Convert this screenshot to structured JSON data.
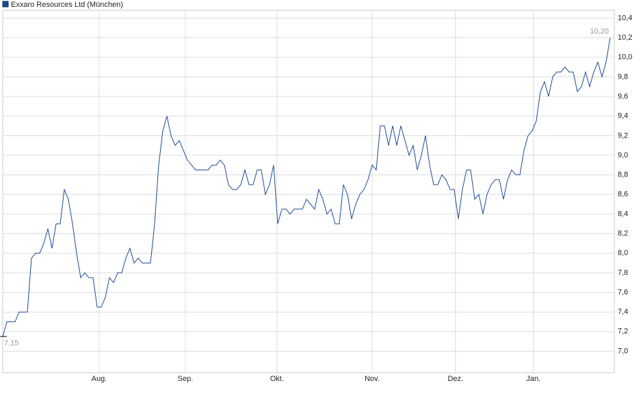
{
  "chart_data": {
    "type": "line",
    "series": [
      {
        "name": "Exxaro Resources Ltd (München)",
        "color": "#1a4a96",
        "values": [
          7.15,
          7.3,
          7.3,
          7.3,
          7.4,
          7.4,
          7.4,
          7.95,
          8.0,
          8.0,
          8.1,
          8.25,
          8.05,
          8.3,
          8.3,
          8.65,
          8.55,
          8.3,
          8.0,
          7.75,
          7.8,
          7.75,
          7.75,
          7.45,
          7.45,
          7.55,
          7.75,
          7.7,
          7.8,
          7.8,
          7.95,
          8.05,
          7.9,
          7.95,
          7.9,
          7.9,
          7.9,
          8.3,
          8.9,
          9.25,
          9.4,
          9.2,
          9.1,
          9.15,
          9.05,
          8.95,
          8.9,
          8.85,
          8.85,
          8.85,
          8.85,
          8.9,
          8.9,
          8.95,
          8.9,
          8.7,
          8.65,
          8.65,
          8.7,
          8.85,
          8.7,
          8.7,
          8.85,
          8.85,
          8.6,
          8.7,
          8.9,
          8.3,
          8.45,
          8.45,
          8.4,
          8.45,
          8.45,
          8.45,
          8.55,
          8.5,
          8.45,
          8.65,
          8.55,
          8.4,
          8.45,
          8.3,
          8.3,
          8.7,
          8.6,
          8.35,
          8.5,
          8.6,
          8.65,
          8.75,
          8.9,
          8.85,
          9.3,
          9.3,
          9.1,
          9.3,
          9.1,
          9.3,
          9.15,
          9.0,
          9.1,
          8.85,
          9.0,
          9.2,
          8.9,
          8.7,
          8.7,
          8.8,
          8.75,
          8.65,
          8.65,
          8.35,
          8.65,
          8.85,
          8.85,
          8.55,
          8.6,
          8.4,
          8.6,
          8.7,
          8.75,
          8.75,
          8.55,
          8.75,
          8.85,
          8.8,
          8.8,
          9.05,
          9.2,
          9.25,
          9.35,
          9.65,
          9.75,
          9.6,
          9.8,
          9.85,
          9.85,
          9.9,
          9.85,
          9.85,
          9.65,
          9.7,
          9.85,
          9.7,
          9.85,
          9.95,
          9.8,
          9.95,
          10.2
        ]
      }
    ],
    "annotations": [
      "7,15",
      "10,20"
    ],
    "xlim": [
      0,
      149
    ],
    "xticks": [
      {
        "value": 23.5,
        "label": "Aug."
      },
      {
        "value": 44.5,
        "label": "Sep."
      },
      {
        "value": 66.8,
        "label": "Okt."
      },
      {
        "value": 90,
        "label": "Nov."
      },
      {
        "value": 110.3,
        "label": "Dez."
      },
      {
        "value": 129.3,
        "label": "Jan."
      }
    ],
    "ylim": [
      6.78,
      10.48
    ],
    "yticks": [
      {
        "value": 7.0,
        "label": "7,0"
      },
      {
        "value": 7.2,
        "label": "7,2"
      },
      {
        "value": 7.4,
        "label": "7,4"
      },
      {
        "value": 7.6,
        "label": "7,6"
      },
      {
        "value": 7.8,
        "label": "7,8"
      },
      {
        "value": 8.0,
        "label": "8,0"
      },
      {
        "value": 8.2,
        "label": "8,2"
      },
      {
        "value": 8.4,
        "label": "8,4"
      },
      {
        "value": 8.6,
        "label": "8,6"
      },
      {
        "value": 8.8,
        "label": "8,8"
      },
      {
        "value": 9.0,
        "label": "9,0"
      },
      {
        "value": 9.2,
        "label": "9,2"
      },
      {
        "value": 9.4,
        "label": "9,4"
      },
      {
        "value": 9.6,
        "label": "9,6"
      },
      {
        "value": 9.8,
        "label": "9,8"
      },
      {
        "value": 10.0,
        "label": "10,0"
      },
      {
        "value": 10.2,
        "label": "10,2"
      },
      {
        "value": 10.4,
        "label": "10,4"
      }
    ],
    "grid": true
  }
}
